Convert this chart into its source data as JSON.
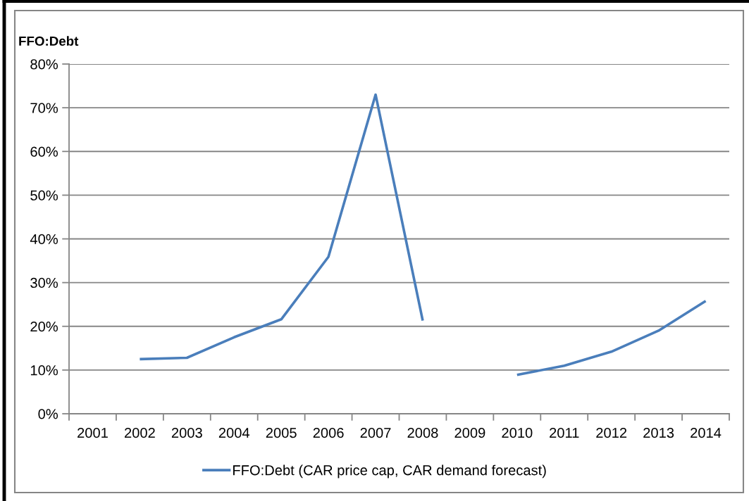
{
  "chart_data": {
    "type": "line",
    "ylabel": "FFO:Debt",
    "categories": [
      "2001",
      "2002",
      "2003",
      "2004",
      "2005",
      "2006",
      "2007",
      "2008",
      "2009",
      "2010",
      "2011",
      "2012",
      "2013",
      "2014"
    ],
    "series": [
      {
        "name": "FFO:Debt (CAR price cap, CAR demand forecast)",
        "color": "#4a7ebb",
        "values": [
          null,
          12.5,
          12.8,
          17.5,
          21.6,
          35.9,
          73.0,
          21.3,
          null,
          8.9,
          11.0,
          14.2,
          19.0,
          25.8
        ]
      }
    ],
    "ylim": [
      0,
      80
    ],
    "yticks": [
      {
        "value": 0,
        "label": "0%"
      },
      {
        "value": 10,
        "label": "10%"
      },
      {
        "value": 20,
        "label": "20%"
      },
      {
        "value": 30,
        "label": "30%"
      },
      {
        "value": 40,
        "label": "40%"
      },
      {
        "value": 50,
        "label": "50%"
      },
      {
        "value": 60,
        "label": "60%"
      },
      {
        "value": 70,
        "label": "70%"
      },
      {
        "value": 80,
        "label": "80%"
      }
    ],
    "grid": "y",
    "legend": "bottom"
  }
}
